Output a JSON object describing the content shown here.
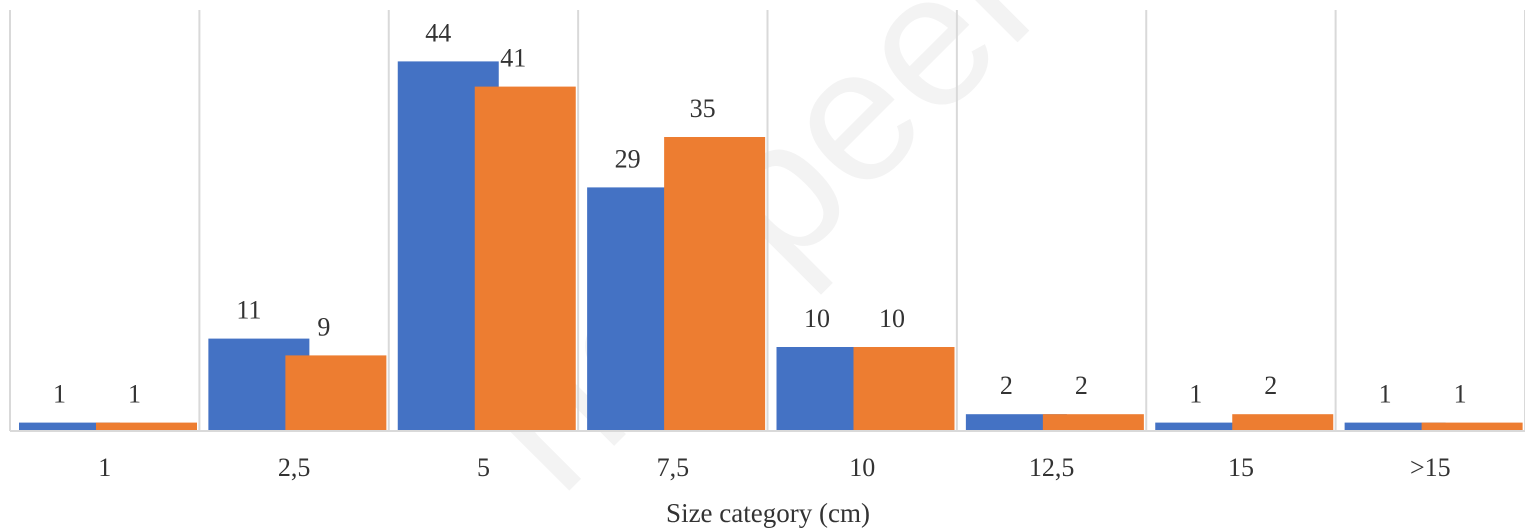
{
  "chart_data": {
    "type": "bar",
    "categories": [
      "1",
      "2,5",
      "5",
      "7,5",
      "10",
      "12,5",
      "15",
      ">15"
    ],
    "series": [
      {
        "values": [
          1,
          11,
          44,
          29,
          10,
          2,
          1,
          1
        ]
      },
      {
        "values": [
          1,
          9,
          41,
          35,
          10,
          2,
          2,
          1
        ]
      }
    ],
    "xlabel": "Size category (cm)",
    "ylabel": "",
    "grid": "vertical separators between categories",
    "legend": "none",
    "colors": [
      "#4472C4",
      "#ED7D31"
    ]
  },
  "watermark": "not peer rev"
}
